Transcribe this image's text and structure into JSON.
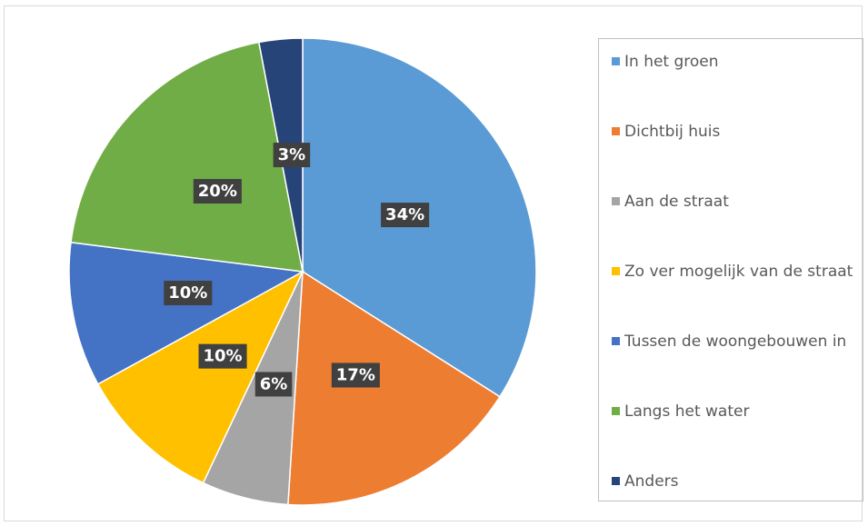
{
  "chart_data": {
    "type": "pie",
    "categories": [
      "In het groen",
      "Dichtbij huis",
      "Aan de straat",
      "Zo ver mogelijk van de straat",
      "Tussen de woongebouwen in",
      "Langs het water",
      "Anders"
    ],
    "values": [
      34,
      17,
      6,
      10,
      10,
      20,
      3
    ],
    "value_labels": [
      "34%",
      "17%",
      "6%",
      "10%",
      "10%",
      "20%",
      "3%"
    ],
    "colors": [
      "#5b9bd5",
      "#ed7d31",
      "#a5a5a5",
      "#ffc000",
      "#4472c4",
      "#70ad47",
      "#264478"
    ],
    "legend": "right"
  }
}
